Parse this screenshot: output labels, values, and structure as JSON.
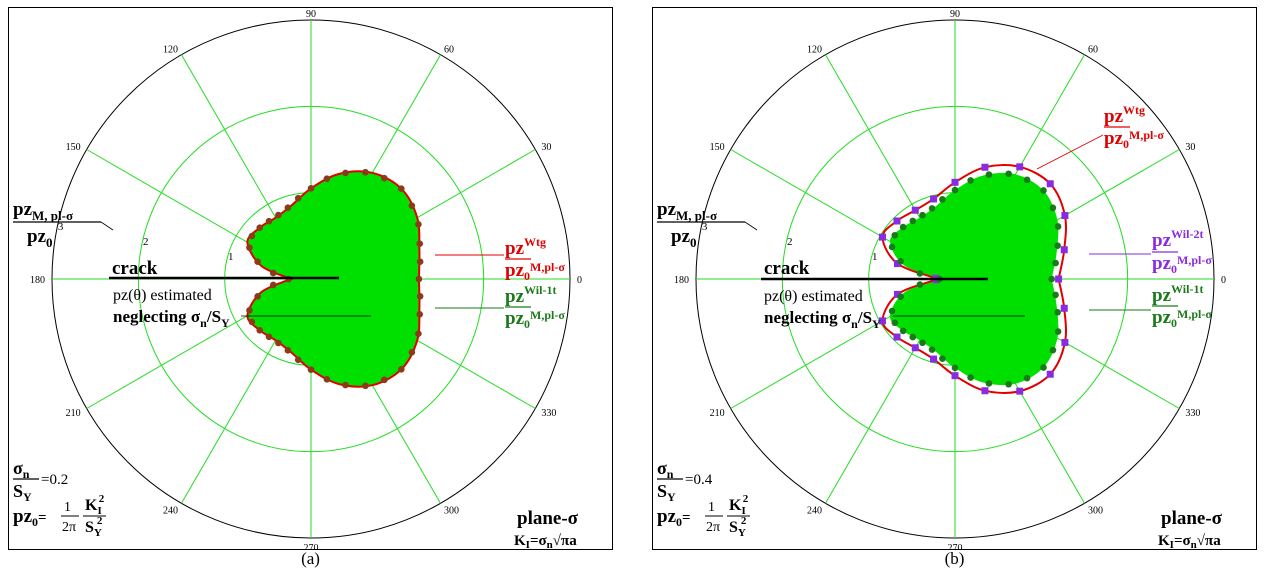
{
  "chart_data": [
    {
      "type": "polar-line",
      "caption": "(a)",
      "angle_ticks": [
        "0",
        "30",
        "60",
        "90",
        "120",
        "150",
        "180",
        "210",
        "240",
        "270",
        "300",
        "330"
      ],
      "radial_ticks": [
        "1",
        "2",
        "3"
      ],
      "rlim": [
        0,
        3
      ],
      "radial_label_num": "pz",
      "radial_label_num_sub": "M, pl-σ",
      "radial_label_den": "pz",
      "radial_label_den_sub": "0",
      "crack_label": "crack",
      "note_line1": "pz(θ) estimated",
      "note_line2_pre": "neglecting σ",
      "note_line2_sub1": "n",
      "note_line2_mid": "/S",
      "note_line2_sub2": "Y",
      "ratio_value": "=0.2",
      "plane_label": "plane-σ",
      "ki_formula": "K",
      "series": [
        {
          "name": "pz Wtg / pz0 M,pl-σ",
          "label_sup": "Wtg",
          "label_sub": "M,pl-σ",
          "color": "#e00000",
          "markers": "none",
          "theta_deg": [
            0,
            15,
            30,
            45,
            60,
            75,
            90,
            105,
            120,
            135,
            150,
            165,
            178,
            182,
            195,
            210,
            225,
            240,
            255,
            270,
            285,
            300,
            315,
            330,
            345,
            360
          ],
          "r": [
            1.25,
            1.3,
            1.42,
            1.48,
            1.42,
            1.26,
            1.05,
            0.88,
            0.82,
            0.84,
            0.85,
            0.6,
            0.26,
            0.26,
            0.6,
            0.85,
            0.84,
            0.82,
            0.88,
            1.05,
            1.26,
            1.42,
            1.48,
            1.42,
            1.3,
            1.25
          ]
        },
        {
          "name": "pz Wil-1t / pz0 M,pl-σ",
          "label_sup": "Wil-1t",
          "label_sub": "M,pl-σ",
          "color": "#1a7a1a",
          "markers": "circle",
          "theta_deg": [
            0,
            15,
            30,
            45,
            60,
            75,
            90,
            105,
            120,
            135,
            150,
            165,
            178,
            182,
            195,
            210,
            225,
            240,
            255,
            270,
            285,
            300,
            315,
            330,
            345,
            360
          ],
          "r": [
            1.25,
            1.3,
            1.42,
            1.48,
            1.42,
            1.26,
            1.05,
            0.88,
            0.82,
            0.84,
            0.85,
            0.6,
            0.26,
            0.26,
            0.6,
            0.85,
            0.84,
            0.82,
            0.88,
            1.05,
            1.26,
            1.42,
            1.48,
            1.42,
            1.3,
            1.25
          ]
        }
      ]
    },
    {
      "type": "polar-line",
      "caption": "(b)",
      "angle_ticks": [
        "0",
        "30",
        "60",
        "90",
        "120",
        "150",
        "180",
        "210",
        "240",
        "270",
        "300",
        "330"
      ],
      "radial_ticks": [
        "1",
        "2",
        "3"
      ],
      "rlim": [
        0,
        3
      ],
      "radial_label_num": "pz",
      "radial_label_num_sub": "M, pl-σ",
      "radial_label_den": "pz",
      "radial_label_den_sub": "0",
      "crack_label": "crack",
      "note_line1": "pz(θ) estimated",
      "note_line2_pre": "neglecting σ",
      "note_line2_sub1": "n",
      "note_line2_mid": "/S",
      "note_line2_sub2": "Y",
      "ratio_value": "=0.4",
      "plane_label": "plane-σ",
      "ki_formula": "K",
      "series": [
        {
          "name": "pz Wtg / pz0 M,pl-σ",
          "label_sup": "Wtg",
          "label_sub": "M,pl-σ",
          "color": "#e00000",
          "markers": "none",
          "theta_deg": [
            0,
            15,
            30,
            45,
            60,
            75,
            90,
            105,
            120,
            135,
            150,
            165,
            178,
            182,
            195,
            210,
            225,
            240,
            255,
            270,
            285,
            300,
            315,
            330,
            345,
            360
          ],
          "r": [
            1.2,
            1.31,
            1.47,
            1.56,
            1.5,
            1.34,
            1.12,
            0.96,
            0.92,
            0.95,
            0.97,
            0.69,
            0.22,
            0.22,
            0.69,
            0.97,
            0.95,
            0.92,
            0.96,
            1.12,
            1.34,
            1.5,
            1.56,
            1.47,
            1.31,
            1.2
          ]
        },
        {
          "name": "pz Wil-2t / pz0 M,pl-σ",
          "label_sup": "Wil-2t",
          "label_sub": "M,pl-σ",
          "color": "#8a2be2",
          "markers": "square",
          "theta_deg": [
            0,
            15,
            30,
            45,
            60,
            75,
            90,
            105,
            120,
            135,
            150,
            165,
            178,
            182,
            195,
            210,
            225,
            240,
            255,
            270,
            285,
            300,
            315,
            330,
            345,
            360
          ],
          "r": [
            1.2,
            1.31,
            1.47,
            1.56,
            1.5,
            1.34,
            1.12,
            0.96,
            0.92,
            0.95,
            0.97,
            0.69,
            0.22,
            0.22,
            0.69,
            0.97,
            0.95,
            0.92,
            0.96,
            1.12,
            1.34,
            1.5,
            1.56,
            1.47,
            1.31,
            1.2
          ]
        },
        {
          "name": "pz Wil-1t / pz0 M,pl-σ",
          "label_sup": "Wil-1t",
          "label_sub": "M,pl-σ",
          "color": "#1a7a1a",
          "markers": "circle",
          "theta_deg": [
            0,
            15,
            30,
            45,
            60,
            75,
            90,
            105,
            120,
            135,
            150,
            165,
            178,
            182,
            195,
            210,
            225,
            240,
            255,
            270,
            285,
            300,
            315,
            330,
            345,
            360
          ],
          "r": [
            1.12,
            1.22,
            1.37,
            1.45,
            1.4,
            1.24,
            1.03,
            0.87,
            0.82,
            0.85,
            0.87,
            0.61,
            0.18,
            0.18,
            0.61,
            0.87,
            0.85,
            0.82,
            0.87,
            1.03,
            1.24,
            1.4,
            1.45,
            1.37,
            1.22,
            1.12
          ]
        }
      ]
    }
  ],
  "colors": {
    "fill": "#00e000",
    "grid": "#22dd22",
    "wtg": "#e00000",
    "wil1t": "#1a7a1a",
    "wil2t": "#8a2be2"
  }
}
